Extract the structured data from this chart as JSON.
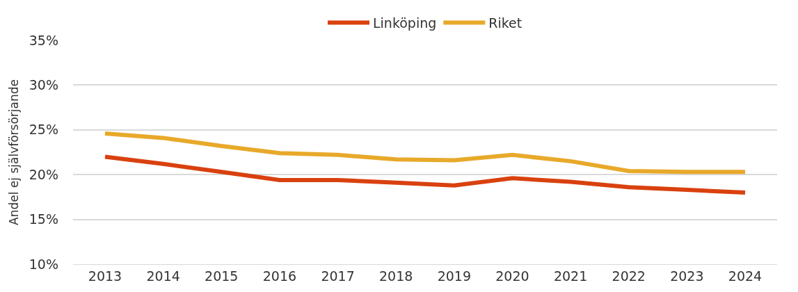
{
  "chart_data": {
    "type": "line",
    "ylabel": "Andel ej självförsörjande",
    "categories": [
      "2013",
      "2014",
      "2015",
      "2016",
      "2017",
      "2018",
      "2019",
      "2020",
      "2021",
      "2022",
      "2023",
      "2024"
    ],
    "series": [
      {
        "name": "Linköping",
        "color": "#d9410f",
        "values": [
          22.0,
          21.2,
          20.3,
          19.4,
          19.4,
          19.1,
          18.8,
          19.6,
          19.2,
          18.6,
          18.3,
          18.0
        ]
      },
      {
        "name": "Riket",
        "color": "#e8a92a",
        "values": [
          24.6,
          24.1,
          23.2,
          22.4,
          22.2,
          21.7,
          21.6,
          22.2,
          21.5,
          20.4,
          20.3,
          20.3
        ]
      }
    ],
    "ylim": [
      10,
      35
    ],
    "yticks": [
      {
        "value": 10,
        "label": "10%"
      },
      {
        "value": 15,
        "label": "15%"
      },
      {
        "value": 20,
        "label": "20%"
      },
      {
        "value": 25,
        "label": "25%"
      },
      {
        "value": 30,
        "label": "30%"
      },
      {
        "value": 35,
        "label": "35%"
      }
    ],
    "grid": "y",
    "legend": "top",
    "marker": "none",
    "line_style": "solid"
  }
}
